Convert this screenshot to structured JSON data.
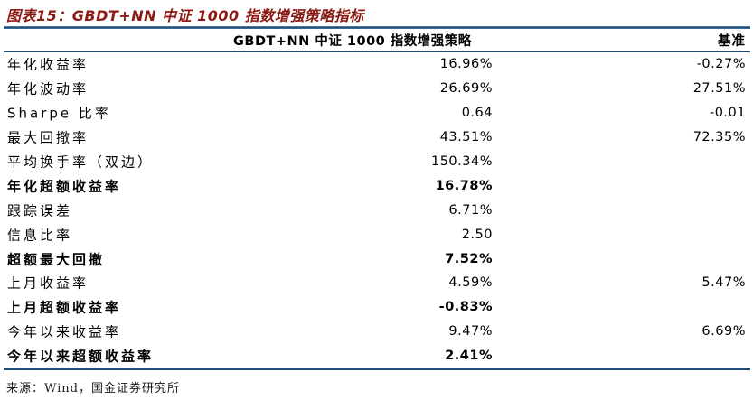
{
  "title": "图表15：GBDT+NN 中证 1000 指数增强策略指标",
  "table": {
    "col_headers": {
      "metric": "",
      "strategy": "GBDT+NN 中证 1000 指数增强策略",
      "benchmark": "基准"
    },
    "rows": [
      {
        "label": "年化收益率",
        "strategy": "16.96%",
        "benchmark": "-0.27%",
        "bold": false
      },
      {
        "label": "年化波动率",
        "strategy": "26.69%",
        "benchmark": "27.51%",
        "bold": false
      },
      {
        "label": "Sharpe 比率",
        "strategy": "0.64",
        "benchmark": "-0.01",
        "bold": false
      },
      {
        "label": "最大回撤率",
        "strategy": "43.51%",
        "benchmark": "72.35%",
        "bold": false
      },
      {
        "label": "平均换手率（双边）",
        "strategy": "150.34%",
        "benchmark": "",
        "bold": false
      },
      {
        "label": "年化超额收益率",
        "strategy": "16.78%",
        "benchmark": "",
        "bold": true
      },
      {
        "label": "跟踪误差",
        "strategy": "6.71%",
        "benchmark": "",
        "bold": false
      },
      {
        "label": "信息比率",
        "strategy": "2.50",
        "benchmark": "",
        "bold": false
      },
      {
        "label": "超额最大回撤",
        "strategy": "7.52%",
        "benchmark": "",
        "bold": true
      },
      {
        "label": "上月收益率",
        "strategy": "4.59%",
        "benchmark": "5.47%",
        "bold": false
      },
      {
        "label": "上月超额收益率",
        "strategy": "-0.83%",
        "benchmark": "",
        "bold": true
      },
      {
        "label": "今年以来收益率",
        "strategy": "9.47%",
        "benchmark": "6.69%",
        "bold": false
      },
      {
        "label": "今年以来超额收益率",
        "strategy": "2.41%",
        "benchmark": "",
        "bold": true
      }
    ]
  },
  "footer": "来源：Wind，国金证券研究所",
  "colors": {
    "title": "#8B1A14",
    "table_line": "#1F4E79"
  }
}
